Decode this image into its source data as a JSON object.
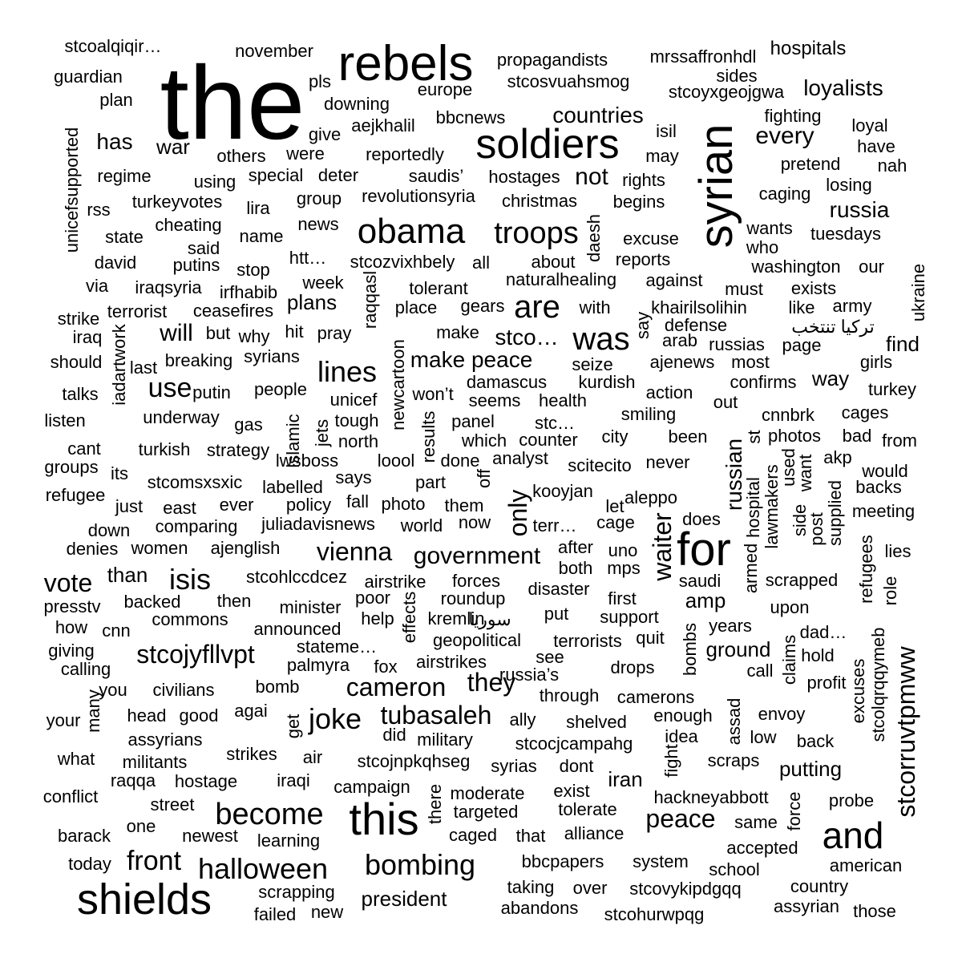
{
  "words": [
    "the",
    "rebels",
    "soldiers",
    "syrian",
    "obama",
    "shields",
    "this",
    "and",
    "for",
    "troops",
    "halloween",
    "become",
    "cameron",
    "bombing",
    "stcojyfllvpt",
    "stcorruvtpmww",
    "vienna",
    "government",
    "isis",
    "lines",
    "front",
    "peace",
    "was",
    "are",
    "joke",
    "tubasaleh",
    "they",
    "only",
    "waiter",
    "vote",
    "will",
    "use",
    "every",
    "loyalists",
    "russia",
    "russian",
    "countries",
    "not",
    "make peace",
    "stco…",
    "president",
    "has",
    "war",
    "plans",
    "than",
    "find",
    "way",
    "iran",
    "amp",
    "ground",
    "putting",
    "hospitals",
    "propagandists",
    "mrssaffronhdl",
    "november",
    "stcoalqiqir…",
    "guardian",
    "plan",
    "pls",
    "downing",
    "europe",
    "stcosvuahsmog",
    "stcoyxgeojgwa",
    "sides",
    "fighting",
    "loyal",
    "have",
    "nah",
    "pretend",
    "losing",
    "caging",
    "wants",
    "who",
    "tuesdays",
    "washington",
    "our",
    "must",
    "exists",
    "like",
    "army",
    "تركيا تنتخب",
    "page",
    "ukraine",
    "arab",
    "russias",
    "most",
    "girls",
    "confirms",
    "turkey",
    "aejkhalil",
    "bbcnews",
    "give",
    "were",
    "others",
    "reportedly",
    "isil",
    "may",
    "rights",
    "special",
    "deter",
    "saudis’",
    "hostages",
    "regime",
    "using",
    "unicefsupported",
    "turkeyvotes",
    "lira",
    "group",
    "revolutionsyria",
    "christmas",
    "begins",
    "rss",
    "cheating",
    "news",
    "state",
    "name",
    "daesh",
    "excuse",
    "said",
    "david",
    "putins",
    "stop",
    "htt…",
    "stcozvixhbely",
    "all",
    "about",
    "reports",
    "via",
    "iraqsyria",
    "irfhabib",
    "week",
    "raqqasl",
    "tolerant",
    "naturalhealing",
    "against",
    "strike",
    "terrorist",
    "ceasefires",
    "place",
    "gears",
    "with",
    "khairilsolihin",
    "say",
    "defense",
    "iraq",
    "but",
    "why",
    "hit",
    "pray",
    "make",
    "iadartwork",
    "should",
    "breaking",
    "syrians",
    "last",
    "newcartoon",
    "seize",
    "ajenews",
    "talks",
    "putin",
    "people",
    "damascus",
    "kurdish",
    "action",
    "won’t",
    "unicef",
    "seems",
    "health",
    "out",
    "listen",
    "underway",
    "islamic",
    "jets",
    "tough",
    "results",
    "panel",
    "stc…",
    "smiling",
    "cnnbrk",
    "cages",
    "gas",
    "north",
    "which",
    "counter",
    "city",
    "been",
    "st",
    "photos",
    "bad",
    "from",
    "cant",
    "turkish",
    "strategy",
    "lwsboss",
    "loool",
    "done",
    "analyst",
    "scitecito",
    "never",
    "used",
    "want",
    "akp",
    "groups",
    "its",
    "would",
    "stcomsxsxic",
    "labelled",
    "says",
    "part",
    "off",
    "kooyjan",
    "lawmakers",
    "hospital",
    "backs",
    "refugee",
    "just",
    "east",
    "ever",
    "policy",
    "fall",
    "photo",
    "them",
    "let",
    "aleppo",
    "does",
    "side",
    "supplied",
    "meeting",
    "down",
    "comparing",
    "juliadavisnews",
    "world",
    "now",
    "terr…",
    "cage",
    "post",
    "denies",
    "women",
    "ajenglish",
    "after",
    "uno",
    "armed",
    "refugees",
    "lies",
    "both",
    "mps",
    "stcohlccdcez",
    "airstrike",
    "forces",
    "saudi",
    "scrapped",
    "role",
    "presstv",
    "backed",
    "then",
    "minister",
    "poor",
    "disaster",
    "roundup",
    "first",
    "upon",
    "how",
    "cnn",
    "commons",
    "announced",
    "help",
    "effects",
    "kremlin",
    "سوريا",
    "put",
    "support",
    "years",
    "dad…",
    "giving",
    "stateme…",
    "geopolitical",
    "terrorists",
    "quit",
    "bombs",
    "calling",
    "palmyra",
    "fox",
    "airstrikes",
    "see",
    "drops",
    "call",
    "claims",
    "hold",
    "excuses",
    "stcolqrqqymeb",
    "you",
    "civilians",
    "bomb",
    "russia’s",
    "profit",
    "many",
    "through",
    "camerons",
    "your",
    "head",
    "good",
    "agai",
    "ally",
    "shelved",
    "enough",
    "assad",
    "envoy",
    "get",
    "did",
    "assyrians",
    "military",
    "stcocjcampahg",
    "idea",
    "low",
    "back",
    "what",
    "militants",
    "strikes",
    "air",
    "stcojnpkqhseg",
    "syrias",
    "dont",
    "fight",
    "scraps",
    "raqqa",
    "hostage",
    "iraqi",
    "campaign",
    "there",
    "exist",
    "conflict",
    "street",
    "moderate",
    "hackneyabbott",
    "force",
    "probe",
    "one",
    "targeted",
    "tolerate",
    "barack",
    "newest",
    "learning",
    "caged",
    "that",
    "alliance",
    "same",
    "accepted",
    "today",
    "bbcpapers",
    "system",
    "school",
    "american",
    "taking",
    "over",
    "stcovykipdgqq",
    "country",
    "scrapping",
    "failed",
    "new",
    "abandons",
    "stcohurwpqg",
    "assyrian",
    "those"
  ],
  "colors": {
    "text": "#000000",
    "background": "#ffffff"
  }
}
